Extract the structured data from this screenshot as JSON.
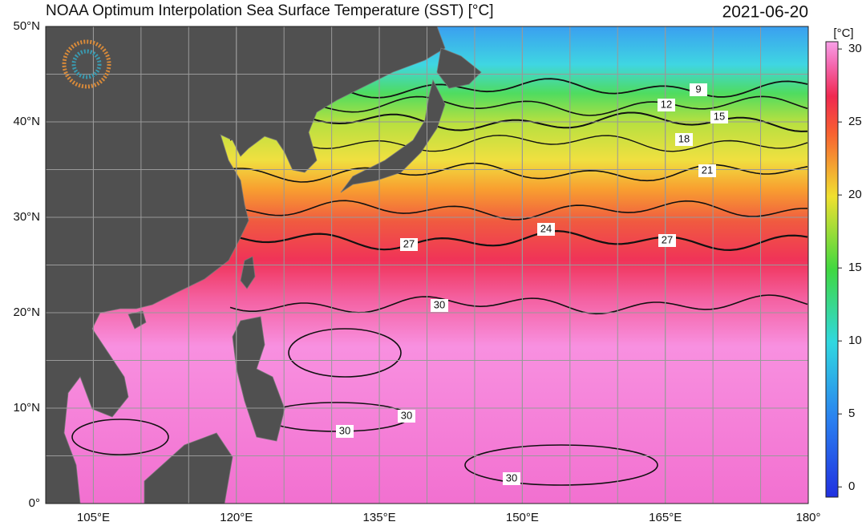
{
  "title": "NOAA Optimum Interpolation Sea Surface Temperature (SST) [°C]",
  "date": "2021-06-20",
  "map": {
    "lat_ticks": [
      {
        "value": 50,
        "label": "50°N"
      },
      {
        "value": 40,
        "label": "40°N"
      },
      {
        "value": 30,
        "label": "30°N"
      },
      {
        "value": 20,
        "label": "20°N"
      },
      {
        "value": 10,
        "label": "10°N"
      },
      {
        "value": 0,
        "label": "0°"
      }
    ],
    "lon_ticks": [
      {
        "value": 105,
        "label": "105°E"
      },
      {
        "value": 120,
        "label": "120°E"
      },
      {
        "value": 135,
        "label": "135°E"
      },
      {
        "value": 150,
        "label": "150°E"
      },
      {
        "value": 165,
        "label": "165°E"
      },
      {
        "value": 180,
        "label": "180°"
      }
    ],
    "contour_labels": [
      9,
      12,
      15,
      18,
      21,
      24,
      27,
      27,
      30,
      30,
      30,
      30
    ]
  },
  "colorbar": {
    "unit": "[°C]",
    "range": [
      -0.7,
      30.5
    ],
    "ticks": [
      0,
      5,
      10,
      15,
      20,
      25,
      30
    ]
  }
}
